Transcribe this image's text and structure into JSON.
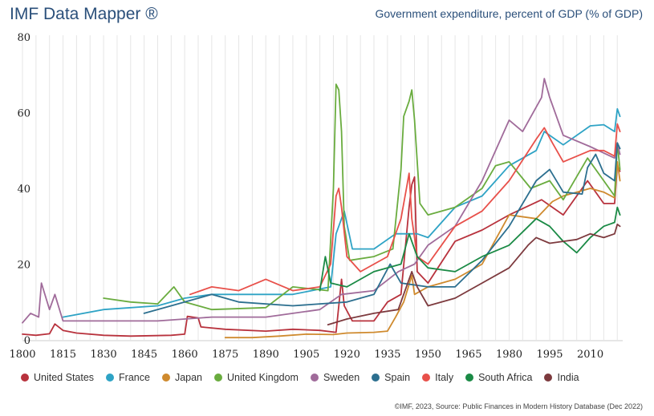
{
  "header": {
    "brand": "IMF Data Mapper ®",
    "chart_title": "Government expenditure, percent of GDP (% of GDP)"
  },
  "footer": {
    "source": "©IMF, 2023, Source: Public Finances in Modern History Database (Dec 2022)"
  },
  "chart_data": {
    "type": "line",
    "title": "Government expenditure, percent of GDP (% of GDP)",
    "xlim": [
      1800,
      2022
    ],
    "ylim": [
      0,
      80
    ],
    "x_ticks": [
      1800,
      1815,
      1830,
      1845,
      1860,
      1875,
      1890,
      1905,
      1920,
      1935,
      1950,
      1965,
      1980,
      1995,
      2010
    ],
    "y_ticks": [
      0,
      20,
      40,
      60,
      80
    ],
    "grid": "vertical",
    "legend_position": "bottom",
    "series": [
      {
        "name": "United States",
        "color": "#b8323d",
        "points": [
          [
            1800,
            1.5
          ],
          [
            1805,
            1.2
          ],
          [
            1810,
            1.6
          ],
          [
            1812,
            4.2
          ],
          [
            1815,
            2.5
          ],
          [
            1820,
            1.8
          ],
          [
            1830,
            1.2
          ],
          [
            1840,
            1.0
          ],
          [
            1855,
            1.2
          ],
          [
            1860,
            1.5
          ],
          [
            1861,
            6.2
          ],
          [
            1865,
            5.8
          ],
          [
            1866,
            3.4
          ],
          [
            1875,
            2.8
          ],
          [
            1890,
            2.3
          ],
          [
            1900,
            2.8
          ],
          [
            1910,
            2.5
          ],
          [
            1916,
            2.0
          ],
          [
            1918,
            16.0
          ],
          [
            1919,
            9.0
          ],
          [
            1922,
            5.0
          ],
          [
            1930,
            5.0
          ],
          [
            1935,
            10.0
          ],
          [
            1940,
            12.0
          ],
          [
            1943,
            35.0
          ],
          [
            1944,
            41.0
          ],
          [
            1945,
            43.0
          ],
          [
            1946,
            18.0
          ],
          [
            1950,
            15.0
          ],
          [
            1960,
            26.0
          ],
          [
            1970,
            29.0
          ],
          [
            1980,
            33.0
          ],
          [
            1992,
            37.0
          ],
          [
            2000,
            33.0
          ],
          [
            2009,
            42.0
          ],
          [
            2015,
            36.0
          ],
          [
            2019,
            36.0
          ],
          [
            2020,
            46.0
          ],
          [
            2021,
            44.5
          ]
        ]
      },
      {
        "name": "France",
        "color": "#2ea3c5",
        "points": [
          [
            1815,
            6.0
          ],
          [
            1830,
            8.0
          ],
          [
            1850,
            9.0
          ],
          [
            1860,
            11.0
          ],
          [
            1870,
            12.0
          ],
          [
            1880,
            12.0
          ],
          [
            1900,
            12.0
          ],
          [
            1914,
            14.0
          ],
          [
            1916,
            28.0
          ],
          [
            1919,
            34.0
          ],
          [
            1922,
            24.0
          ],
          [
            1930,
            24.0
          ],
          [
            1938,
            28.0
          ],
          [
            1946,
            28.0
          ],
          [
            1950,
            27.0
          ],
          [
            1960,
            35.0
          ],
          [
            1970,
            38.0
          ],
          [
            1980,
            46.0
          ],
          [
            1990,
            50.0
          ],
          [
            1993,
            55.0
          ],
          [
            2000,
            51.5
          ],
          [
            2010,
            56.5
          ],
          [
            2015,
            56.8
          ],
          [
            2019,
            55.0
          ],
          [
            2020,
            61.0
          ],
          [
            2021,
            59.0
          ]
        ]
      },
      {
        "name": "Japan",
        "color": "#cf8a2e",
        "points": [
          [
            1875,
            0.6
          ],
          [
            1885,
            0.6
          ],
          [
            1895,
            1.0
          ],
          [
            1905,
            1.5
          ],
          [
            1915,
            1.4
          ],
          [
            1920,
            1.8
          ],
          [
            1930,
            2.0
          ],
          [
            1935,
            2.3
          ],
          [
            1938,
            6.0
          ],
          [
            1941,
            10.0
          ],
          [
            1944,
            17.0
          ],
          [
            1945,
            12.0
          ],
          [
            1950,
            14.0
          ],
          [
            1960,
            16.0
          ],
          [
            1970,
            20.0
          ],
          [
            1980,
            33.0
          ],
          [
            1990,
            32.0
          ],
          [
            1996,
            36.5
          ],
          [
            2000,
            38.0
          ],
          [
            2010,
            40.0
          ],
          [
            2015,
            39.0
          ],
          [
            2019,
            37.5
          ],
          [
            2020,
            47.0
          ],
          [
            2021,
            42.0
          ]
        ]
      },
      {
        "name": "United Kingdom",
        "color": "#6aac3f",
        "points": [
          [
            1830,
            11.0
          ],
          [
            1840,
            10.0
          ],
          [
            1850,
            9.5
          ],
          [
            1856,
            14.0
          ],
          [
            1860,
            10.0
          ],
          [
            1870,
            8.0
          ],
          [
            1890,
            8.5
          ],
          [
            1900,
            14.0
          ],
          [
            1913,
            13.0
          ],
          [
            1915,
            40.0
          ],
          [
            1916,
            67.5
          ],
          [
            1917,
            66.0
          ],
          [
            1918,
            55.0
          ],
          [
            1919,
            30.0
          ],
          [
            1921,
            21.0
          ],
          [
            1930,
            22.0
          ],
          [
            1937,
            24.0
          ],
          [
            1940,
            45.0
          ],
          [
            1941,
            59.0
          ],
          [
            1943,
            63.0
          ],
          [
            1944,
            66.0
          ],
          [
            1945,
            58.0
          ],
          [
            1947,
            36.0
          ],
          [
            1950,
            33.0
          ],
          [
            1960,
            35.0
          ],
          [
            1970,
            40.0
          ],
          [
            1975,
            46.0
          ],
          [
            1980,
            47.0
          ],
          [
            1988,
            40.0
          ],
          [
            1995,
            42.0
          ],
          [
            2000,
            37.0
          ],
          [
            2009,
            48.0
          ],
          [
            2015,
            42.0
          ],
          [
            2019,
            38.0
          ],
          [
            2020,
            52.0
          ],
          [
            2021,
            45.0
          ]
        ]
      },
      {
        "name": "Sweden",
        "color": "#a06b9a",
        "points": [
          [
            1800,
            4.5
          ],
          [
            1803,
            7.0
          ],
          [
            1806,
            6.0
          ],
          [
            1807,
            15.0
          ],
          [
            1810,
            8.0
          ],
          [
            1812,
            12.0
          ],
          [
            1815,
            5.0
          ],
          [
            1830,
            5.0
          ],
          [
            1850,
            5.0
          ],
          [
            1870,
            6.0
          ],
          [
            1890,
            6.0
          ],
          [
            1910,
            8.0
          ],
          [
            1918,
            12.0
          ],
          [
            1930,
            13.0
          ],
          [
            1939,
            18.0
          ],
          [
            1945,
            20.0
          ],
          [
            1950,
            25.0
          ],
          [
            1960,
            30.0
          ],
          [
            1970,
            42.0
          ],
          [
            1980,
            58.0
          ],
          [
            1985,
            55.0
          ],
          [
            1992,
            64.0
          ],
          [
            1993,
            69.0
          ],
          [
            1995,
            64.0
          ],
          [
            2000,
            54.0
          ],
          [
            2010,
            51.0
          ],
          [
            2019,
            48.0
          ],
          [
            2020,
            52.0
          ],
          [
            2021,
            49.0
          ]
        ]
      },
      {
        "name": "Spain",
        "color": "#2c6f8f",
        "points": [
          [
            1845,
            7.0
          ],
          [
            1860,
            10.0
          ],
          [
            1870,
            12.0
          ],
          [
            1880,
            10.0
          ],
          [
            1900,
            9.0
          ],
          [
            1920,
            10.0
          ],
          [
            1930,
            12.0
          ],
          [
            1936,
            20.0
          ],
          [
            1940,
            15.0
          ],
          [
            1950,
            14.0
          ],
          [
            1960,
            14.0
          ],
          [
            1970,
            21.0
          ],
          [
            1980,
            30.0
          ],
          [
            1990,
            42.0
          ],
          [
            1995,
            45.0
          ],
          [
            2000,
            39.0
          ],
          [
            2007,
            38.5
          ],
          [
            2009,
            45.5
          ],
          [
            2012,
            49.0
          ],
          [
            2015,
            44.0
          ],
          [
            2019,
            42.0
          ],
          [
            2020,
            52.0
          ],
          [
            2021,
            50.5
          ]
        ]
      },
      {
        "name": "Italy",
        "color": "#e8504a",
        "points": [
          [
            1862,
            12.0
          ],
          [
            1870,
            14.0
          ],
          [
            1880,
            13.0
          ],
          [
            1890,
            16.0
          ],
          [
            1900,
            13.0
          ],
          [
            1910,
            14.0
          ],
          [
            1914,
            20.0
          ],
          [
            1916,
            38.0
          ],
          [
            1917,
            40.0
          ],
          [
            1918,
            35.0
          ],
          [
            1920,
            22.0
          ],
          [
            1925,
            18.0
          ],
          [
            1935,
            22.0
          ],
          [
            1940,
            32.0
          ],
          [
            1942,
            40.0
          ],
          [
            1943,
            44.0
          ],
          [
            1944,
            32.0
          ],
          [
            1946,
            22.0
          ],
          [
            1950,
            20.0
          ],
          [
            1960,
            30.0
          ],
          [
            1970,
            34.0
          ],
          [
            1980,
            42.0
          ],
          [
            1990,
            53.0
          ],
          [
            1993,
            56.0
          ],
          [
            1996,
            52.0
          ],
          [
            2000,
            47.0
          ],
          [
            2010,
            50.0
          ],
          [
            2015,
            50.0
          ],
          [
            2019,
            48.5
          ],
          [
            2020,
            57.0
          ],
          [
            2021,
            55.0
          ]
        ]
      },
      {
        "name": "South Africa",
        "color": "#1a8a45",
        "points": [
          [
            1910,
            13.0
          ],
          [
            1912,
            22.0
          ],
          [
            1914,
            15.0
          ],
          [
            1920,
            14.0
          ],
          [
            1930,
            18.0
          ],
          [
            1940,
            20.0
          ],
          [
            1943,
            28.0
          ],
          [
            1946,
            22.0
          ],
          [
            1950,
            19.0
          ],
          [
            1960,
            18.0
          ],
          [
            1970,
            22.0
          ],
          [
            1980,
            25.0
          ],
          [
            1990,
            32.0
          ],
          [
            1995,
            30.0
          ],
          [
            2000,
            26.0
          ],
          [
            2005,
            23.0
          ],
          [
            2010,
            27.0
          ],
          [
            2015,
            30.0
          ],
          [
            2019,
            31.0
          ],
          [
            2020,
            35.0
          ],
          [
            2021,
            33.0
          ]
        ]
      },
      {
        "name": "India",
        "color": "#7d3a3e",
        "points": [
          [
            1913,
            4.0
          ],
          [
            1920,
            5.5
          ],
          [
            1930,
            7.0
          ],
          [
            1939,
            8.0
          ],
          [
            1944,
            18.0
          ],
          [
            1946,
            14.0
          ],
          [
            1950,
            9.0
          ],
          [
            1960,
            11.0
          ],
          [
            1970,
            15.0
          ],
          [
            1980,
            19.0
          ],
          [
            1987,
            25.0
          ],
          [
            1990,
            27.0
          ],
          [
            1995,
            25.5
          ],
          [
            2000,
            26.0
          ],
          [
            2005,
            26.5
          ],
          [
            2010,
            28.0
          ],
          [
            2015,
            27.0
          ],
          [
            2019,
            28.0
          ],
          [
            2020,
            30.5
          ],
          [
            2021,
            30.0
          ]
        ]
      }
    ]
  }
}
